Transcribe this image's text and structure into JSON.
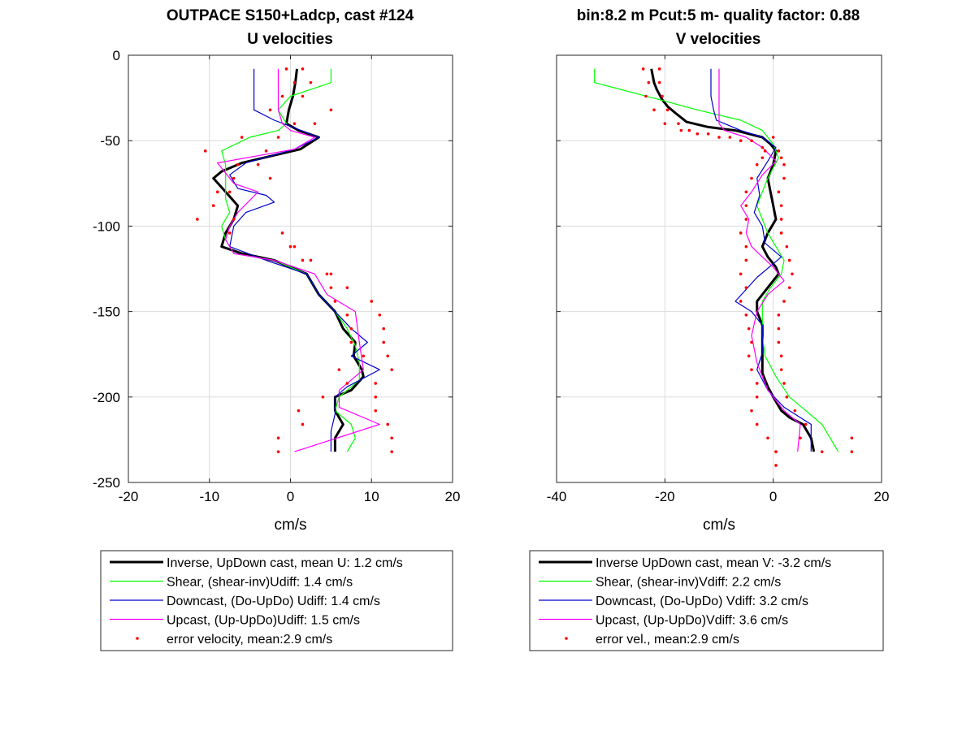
{
  "header": {
    "left_title_line1": "OUTPACE S150+Ladcp, cast #124",
    "left_title_line2": "U velocities",
    "right_title_line1": "bin:8.2 m  Pcut:5 m- quality factor:  0.88",
    "right_title_line2": "V velocities"
  },
  "colors": {
    "inverse": "#000000",
    "shear": "#00ff00",
    "downcast": "#0000cc",
    "upcast": "#ff00ff",
    "error": "#ff0000",
    "grid": "#dcdcdc",
    "axis": "#262626"
  },
  "chart_data": [
    {
      "type": "line",
      "title": "OUTPACE S150+Ladcp, cast #124 / U velocities",
      "xlabel": "cm/s",
      "ylabel": "",
      "xlim": [
        -20,
        20
      ],
      "ylim": [
        -250,
        0
      ],
      "xticks": [
        -20,
        -10,
        0,
        10,
        20
      ],
      "yticks": [
        0,
        -50,
        -100,
        -150,
        -200,
        -250
      ],
      "grid": true,
      "legend_entries": [
        "Inverse, UpDown cast, mean U:  1.2 cm/s",
        "Shear, (shear-inv)Udiff:  1.4 cm/s",
        "Downcast, (Do-UpDo) Udiff:  1.4 cm/s",
        "Upcast, (Up-UpDo)Udiff:  1.5 cm/s",
        "error velocity, mean:2.9 cm/s"
      ],
      "series": [
        {
          "name": "Inverse, UpDown cast, mean U:  1.2 cm/s",
          "style": "thick",
          "x": [
            0.8,
            0.6,
            0.3,
            -0.2,
            -0.5,
            1.0,
            3.5,
            1.2,
            -6.0,
            -8.5,
            -9.5,
            -8.0,
            -6.5,
            -7.0,
            -7.5,
            -8.0,
            -8.5,
            -6.0,
            -2.0,
            2.0,
            3.5,
            5.5,
            6.5,
            8.0,
            7.8,
            8.8,
            9.0,
            7.5,
            5.5,
            5.5,
            6.5,
            5.5,
            5.5
          ],
          "y": [
            -8,
            -16,
            -24,
            -32,
            -40,
            -44,
            -48,
            -55,
            -63,
            -68,
            -72,
            -80,
            -88,
            -96,
            -100,
            -104,
            -112,
            -116,
            -120,
            -128,
            -140,
            -150,
            -160,
            -168,
            -176,
            -184,
            -188,
            -196,
            -200,
            -208,
            -216,
            -224,
            -232
          ]
        },
        {
          "name": "Shear, (shear-inv)Udiff:  1.4 cm/s",
          "style": "thin",
          "x": [
            5.0,
            5.0,
            0.0,
            -1.5,
            -0.5,
            -1.5,
            -5.0,
            -8.5,
            -8.0,
            -8.0,
            -8.0,
            -7.5,
            -8.5,
            -8.0,
            -7.0,
            -2.0,
            2.0,
            3.5,
            5.5,
            7.0,
            8.0,
            8.5,
            8.5,
            6.0,
            5.5,
            7.5,
            8.0,
            7.0
          ],
          "y": [
            -8,
            -16,
            -24,
            -32,
            -40,
            -44,
            -48,
            -56,
            -64,
            -76,
            -84,
            -92,
            -100,
            -108,
            -116,
            -120,
            -128,
            -140,
            -150,
            -160,
            -170,
            -180,
            -190,
            -200,
            -208,
            -216,
            -224,
            -232
          ]
        },
        {
          "name": "Downcast, (Do-UpDo) Udiff:  1.4 cm/s",
          "style": "thin",
          "x": [
            -4.5,
            -4.5,
            -4.5,
            -2.0,
            3.5,
            0.5,
            -5.5,
            -7.5,
            -6.5,
            -3.0,
            -2.0,
            -5.5,
            -7.0,
            -7.5,
            -3.0,
            2.0,
            3.5,
            5.5,
            7.5,
            9.5,
            7.5,
            11.0,
            7.0,
            5.5,
            5.5,
            5.0,
            5.0
          ],
          "y": [
            -8,
            -20,
            -32,
            -38,
            -48,
            -55,
            -63,
            -70,
            -78,
            -82,
            -86,
            -92,
            -100,
            -112,
            -120,
            -128,
            -140,
            -150,
            -160,
            -168,
            -176,
            -184,
            -194,
            -200,
            -210,
            -220,
            -232
          ]
        },
        {
          "name": "Upcast, (Up-UpDo)Udiff:  1.5 cm/s",
          "style": "thin",
          "x": [
            -1.5,
            -1.5,
            -1.5,
            -1.0,
            0.0,
            3.0,
            0.5,
            -9.0,
            -7.0,
            -4.0,
            -6.5,
            -7.5,
            -8.0,
            -7.0,
            -2.0,
            3.0,
            4.5,
            8.0,
            8.5,
            9.0,
            6.0,
            6.0,
            11.0,
            0.5
          ],
          "y": [
            -8,
            -20,
            -32,
            -40,
            -44,
            -48,
            -55,
            -63,
            -75,
            -80,
            -92,
            -100,
            -108,
            -116,
            -120,
            -128,
            -140,
            -150,
            -168,
            -184,
            -196,
            -206,
            -216,
            -232
          ]
        },
        {
          "name": "error velocity, mean:2.9 cm/s",
          "style": "dots",
          "x": [
            -0.5,
            1.5,
            0.5,
            2.5,
            -1.0,
            1.5,
            -2.5,
            5.0,
            0.5,
            3.0,
            -1.5,
            -6.0,
            -3.0,
            -10.5,
            -6.5,
            -4.0,
            -2.5,
            -7.0,
            -9.0,
            -7.5,
            -9.5,
            -9.5,
            -11.5,
            -7.0,
            -7.5,
            -1.0,
            0.0,
            0.5,
            1.5,
            2.5,
            4.5,
            5.0,
            7.0,
            5.0,
            5.5,
            10.0,
            7.0,
            11.0,
            7.5,
            11.5,
            7.5,
            11.5,
            9.0,
            12.0,
            6.0,
            12.5,
            7.0,
            10.5,
            4.0,
            10.5,
            1.0,
            10.5,
            1.5,
            12.0,
            -1.5,
            12.5,
            -1.5,
            12.5
          ],
          "y": [
            -8,
            -8,
            -16,
            -16,
            -24,
            -24,
            -32,
            -32,
            -40,
            -40,
            -48,
            -48,
            -56,
            -56,
            -64,
            -64,
            -72,
            -72,
            -80,
            -80,
            -88,
            -88,
            -96,
            -96,
            -104,
            -104,
            -112,
            -112,
            -120,
            -120,
            -128,
            -128,
            -136,
            -136,
            -144,
            -144,
            -152,
            -152,
            -160,
            -160,
            -168,
            -168,
            -176,
            -176,
            -184,
            -184,
            -192,
            -192,
            -200,
            -200,
            -208,
            -208,
            -216,
            -216,
            -224,
            -224,
            -232,
            -232
          ]
        }
      ]
    },
    {
      "type": "line",
      "title": "bin:8.2 m  Pcut:5 m- quality factor:  0.88 / V velocities",
      "xlabel": "cm/s",
      "ylabel": "",
      "xlim": [
        -40,
        20
      ],
      "ylim": [
        -250,
        0
      ],
      "xticks": [
        -40,
        -20,
        0,
        20
      ],
      "yticks": [
        0,
        -50,
        -100,
        -150,
        -200,
        -250
      ],
      "grid": true,
      "legend_entries": [
        "Inverse UpDown cast, mean V:  -3.2 cm/s",
        "Shear, (shear-inv)Vdiff:  2.2 cm/s",
        "Downcast, (Do-UpDo) Vdiff:  3.2 cm/s",
        "Upcast, (Up-UpDo)Vdiff:  3.6 cm/s",
        "error vel., mean:2.9 cm/s"
      ],
      "series": [
        {
          "name": "Inverse UpDown cast, mean V:  -3.2 cm/s",
          "style": "thick",
          "x": [
            -22.5,
            -22,
            -21.5,
            -20.5,
            -19.5,
            -18,
            -16,
            -12,
            -7,
            -2,
            -0.5,
            0.5,
            0,
            -1,
            -0.5,
            0,
            0.5,
            -1,
            -2,
            -1,
            0.5,
            1,
            -1,
            -3,
            -3,
            -2,
            -2,
            -2,
            -2,
            -2,
            -1,
            0,
            1.5,
            3,
            5.5,
            7,
            7.5
          ],
          "y": [
            -8,
            -16,
            -20,
            -26,
            -30,
            -34,
            -39,
            -42,
            -44,
            -48,
            -52,
            -56,
            -64,
            -72,
            -80,
            -88,
            -96,
            -104,
            -112,
            -118,
            -124,
            -128,
            -136,
            -144,
            -150,
            -158,
            -166,
            -174,
            -180,
            -186,
            -194,
            -200,
            -208,
            -212,
            -216,
            -224,
            -232
          ]
        },
        {
          "name": "Shear, (shear-inv)Vdiff:  2.2 cm/s",
          "style": "thin",
          "x": [
            -33,
            -33,
            -21,
            -14,
            -6,
            -2,
            0,
            1,
            -1,
            -2,
            -3,
            -2,
            -1,
            0.5,
            2,
            1.5,
            -0.5,
            -2,
            -2,
            -2,
            -1.5,
            0.5,
            3,
            6,
            9,
            12
          ],
          "y": [
            -8,
            -16,
            -26,
            -32,
            -38,
            -44,
            -52,
            -60,
            -72,
            -80,
            -88,
            -96,
            -104,
            -112,
            -120,
            -128,
            -136,
            -144,
            -152,
            -164,
            -176,
            -188,
            -200,
            -208,
            -216,
            -232
          ]
        },
        {
          "name": "Downcast, (Do-UpDo) Vdiff:  3.2 cm/s",
          "style": "thin",
          "x": [
            -11.5,
            -11.5,
            -11.5,
            -11,
            -10.5,
            -6,
            -2,
            0.5,
            -1,
            -3,
            -2.5,
            -3.5,
            -2,
            -1.5,
            1.5,
            -3,
            -7,
            -4,
            -2,
            -2,
            -2,
            -3,
            -1,
            2,
            7,
            7
          ],
          "y": [
            -8,
            -16,
            -24,
            -32,
            -38,
            -44,
            -48,
            -54,
            -62,
            -72,
            -82,
            -92,
            -100,
            -110,
            -118,
            -130,
            -144,
            -150,
            -158,
            -166,
            -174,
            -184,
            -196,
            -206,
            -216,
            -232
          ]
        },
        {
          "name": "Upcast, (Up-UpDo)Vdiff:  3.6 cm/s",
          "style": "thin",
          "x": [
            -10,
            -10,
            -10,
            -10,
            -10,
            -9,
            -5,
            -2,
            0.5,
            -2,
            -4,
            -6,
            -4.5,
            -5,
            -4,
            -2,
            0,
            2,
            -1,
            -3,
            -4,
            -3,
            -1,
            2,
            5,
            4.5
          ],
          "y": [
            -8,
            -16,
            -24,
            -32,
            -40,
            -44,
            -48,
            -54,
            -62,
            -70,
            -80,
            -88,
            -96,
            -104,
            -112,
            -118,
            -124,
            -132,
            -140,
            -150,
            -164,
            -180,
            -196,
            -208,
            -216,
            -232
          ]
        },
        {
          "name": "error vel., mean:2.9 cm/s",
          "style": "dots",
          "x": [
            -24,
            -21,
            -23,
            -21,
            -23.5,
            -20.5,
            -22,
            -19.5,
            -20,
            -17.5,
            -17,
            -15.5,
            -14,
            -12,
            -10,
            -8,
            -6,
            -4,
            -2,
            0,
            -1.5,
            1,
            -2,
            1.5,
            -3,
            2,
            -4,
            2,
            -5,
            1,
            -5,
            1.5,
            -5,
            1.5,
            -6,
            1.5,
            -5,
            2.5,
            -5,
            3,
            -6,
            3.5,
            -5,
            3,
            -6,
            2,
            -5,
            1,
            -4.5,
            1,
            -4,
            1,
            -4.5,
            1.5,
            -4,
            1.5,
            -3,
            2,
            -3,
            2.5,
            -4,
            4,
            -3,
            6,
            -1,
            5,
            0.5,
            9,
            0.5,
            14.5,
            0.5,
            14.5
          ],
          "y": [
            -8,
            -8,
            -16,
            -16,
            -24,
            -24,
            -32,
            -32,
            -40,
            -40,
            -44,
            -44,
            -46,
            -46,
            -48,
            -48,
            -50,
            -50,
            -54,
            -48,
            -56,
            -56,
            -60,
            -60,
            -64,
            -64,
            -72,
            -72,
            -80,
            -80,
            -88,
            -88,
            -96,
            -96,
            -104,
            -104,
            -112,
            -112,
            -120,
            -120,
            -128,
            -128,
            -136,
            -136,
            -144,
            -144,
            -152,
            -152,
            -160,
            -160,
            -168,
            -168,
            -176,
            -176,
            -184,
            -184,
            -192,
            -192,
            -200,
            -200,
            -208,
            -208,
            -216,
            -216,
            -224,
            -224,
            -232,
            -232,
            -240,
            -224,
            -232,
            -232
          ]
        }
      ]
    }
  ]
}
